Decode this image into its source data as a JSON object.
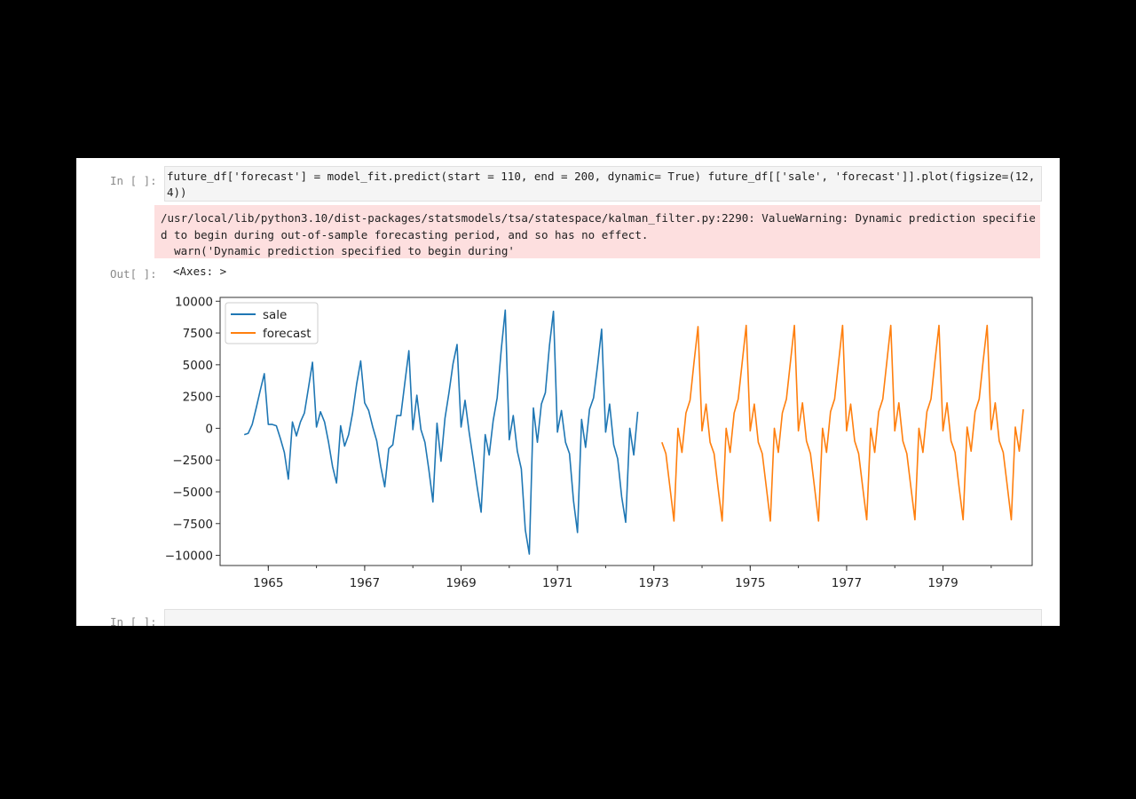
{
  "cell1": {
    "in_prompt": "In [ ]:",
    "code": "future_df['forecast'] = model_fit.predict(start = 110, end = 200, dynamic= True) future_df[['sale', 'forecast']].plot(figsize=(12, 4))",
    "stderr": "/usr/local/lib/python3.10/dist-packages/statsmodels/tsa/statespace/kalman_filter.py:2290: ValueWarning: Dynamic prediction specified to begin during out-of-sample forecasting period, and so has no effect.\n  warn('Dynamic prediction specified to begin during'",
    "out_prompt": "Out[ ]:",
    "output_text": "<Axes: >"
  },
  "cell2": {
    "in_prompt": "In [ ]:"
  },
  "colors": {
    "sale": "#1f77b4",
    "forecast": "#ff7f0e",
    "stderr_bg": "#fddfdf"
  },
  "chart_data": {
    "type": "line",
    "title": "",
    "xlabel": "",
    "ylabel": "",
    "xlim": [
      1964.0,
      1980.85
    ],
    "ylim": [
      -10800,
      10300
    ],
    "xticks": [
      1965,
      1967,
      1969,
      1971,
      1973,
      1975,
      1977,
      1979
    ],
    "yticks": [
      10000,
      7500,
      5000,
      2500,
      0,
      -2500,
      -5000,
      -7500,
      -10000
    ],
    "ytick_labels": [
      "10000",
      "7500",
      "5000",
      "2500",
      "0",
      "−2500",
      "−5000",
      "−7500",
      "−10000"
    ],
    "legend_position": "upper-left",
    "grid": false,
    "series": [
      {
        "name": "sale",
        "x_start": 1964.5,
        "step_months": 1,
        "values": [
          -500,
          -400,
          300,
          1600,
          3000,
          4300,
          300,
          300,
          200,
          -800,
          -1900,
          -4000,
          500,
          -600,
          500,
          1200,
          3200,
          5200,
          100,
          1300,
          500,
          -1100,
          -3000,
          -4300,
          200,
          -1400,
          -500,
          1200,
          3500,
          5300,
          2000,
          1400,
          100,
          -1000,
          -3000,
          -4600,
          -1600,
          -1300,
          1000,
          1000,
          3600,
          6100,
          -100,
          2600,
          -100,
          -1100,
          -3300,
          -5800,
          400,
          -2600,
          800,
          2800,
          5100,
          6600,
          100,
          2200,
          -300,
          -2400,
          -4600,
          -6600,
          -500,
          -2100,
          600,
          2400,
          6200,
          9300,
          -900,
          1000,
          -1800,
          -3200,
          -8000,
          -9900,
          1600,
          -1100,
          1900,
          2800,
          6500,
          9200,
          -300,
          1400,
          -1100,
          -2000,
          -5700,
          -8200,
          700,
          -1500,
          1500,
          2400,
          5000,
          7800,
          -300,
          1900,
          -1300,
          -2400,
          -5400,
          -7400,
          0,
          -2100,
          1300
        ]
      },
      {
        "name": "forecast",
        "x_start": 1973.1667,
        "step_months": 1,
        "values": [
          -1100,
          -2000,
          -4600,
          -7300,
          0,
          -1900,
          1200,
          2200,
          5200,
          8000,
          -200,
          1900,
          -1100,
          -2000,
          -4700,
          -7300,
          0,
          -1900,
          1200,
          2300,
          5200,
          8100,
          -200,
          1900,
          -1100,
          -2000,
          -4600,
          -7300,
          0,
          -1900,
          1200,
          2300,
          5200,
          8100,
          -200,
          2000,
          -1000,
          -2000,
          -4600,
          -7300,
          0,
          -1900,
          1300,
          2300,
          5200,
          8100,
          -200,
          1900,
          -1000,
          -2000,
          -4600,
          -7200,
          0,
          -1900,
          1300,
          2300,
          5200,
          8100,
          -200,
          2000,
          -1000,
          -2000,
          -4600,
          -7200,
          0,
          -1900,
          1300,
          2300,
          5300,
          8100,
          -200,
          2000,
          -1000,
          -1900,
          -4600,
          -7200,
          100,
          -1800,
          1300,
          2300,
          5300,
          8100,
          -100,
          2000,
          -1000,
          -1900,
          -4500,
          -7200,
          100,
          -1800,
          1500
        ]
      }
    ]
  }
}
